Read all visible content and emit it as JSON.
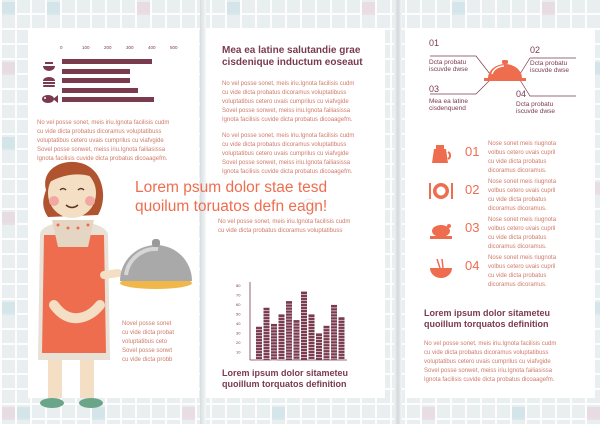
{
  "colors": {
    "accent": "#ef6d4f",
    "dark": "#7a3b4f",
    "text": "#d07b6a"
  },
  "left_panel": {
    "axis_ticks": [
      "0",
      "100",
      "200",
      "300",
      "400",
      "500"
    ],
    "bar_icons": [
      "bowl-icon",
      "burger-icon",
      "fish-icon"
    ],
    "chart_data": {
      "type": "bar",
      "orientation": "horizontal",
      "categories": [
        "",
        "",
        "",
        "",
        ""
      ],
      "values": [
        410,
        310,
        310,
        345,
        420
      ],
      "xlim": [
        0,
        500
      ]
    },
    "para": [
      "No vel posse sonet, meis iriu.Ignota facilisis cudm",
      "cu vide dicta probatus dicoramus voluptatibuss",
      "voluptatibus cetero uvais cumprilus cu viafvgide",
      "Sovel posse sonwet, meiss iriu.Ignota failiasissa",
      "Ignota facilisis cuvide dicta probatus dicoaagefm."
    ],
    "para_bottom": [
      "Novel posse sonet",
      "cu vide dicta probat",
      "voluptatibus ceto",
      "Sovel posse sonwt",
      "cu vide dicta probb"
    ]
  },
  "middle_panel": {
    "heading": [
      "Mea ea latine salutandie grae",
      "cisdenique inductum eoseaut"
    ],
    "para1": [
      "No vel posse sonet, meis iriu.Ignota facilisis cudm",
      "cu vide dicta probatus dicoramus voluptatibuss",
      "voluptatibus cetero uvais cumprilus cu viafvgide",
      "Sovel posse sonwet, meiss iriu.Ignota failiasissa",
      "Ignota facilisis cuvide dicta probatus dicoaagefm."
    ],
    "para2": [
      "No vel posse sonet, meis iriu.Ignota facilisis cudm",
      "cu vide dicta probatus dicoramus voluptatibuss",
      "voluptatibus cetero uvais cumprilus cu viafvgide",
      "Sovel posse sonwet, meiss iriu.Ignota failiasissa",
      "Ignota facilisis cuvide dicta probatus dicoaagefm."
    ],
    "big_title": [
      "Lorem psum dolor stae tesd",
      "quoilum toruatos defn eagn!"
    ],
    "small_para": [
      "No vel posse sonet, meis iriu.Ignota facilisis cudm",
      "cu vide dicta probatus dicoramus voluptatibuss"
    ],
    "chart_ticks": [
      "80",
      "70",
      "60",
      "50",
      "40",
      "30",
      "20",
      "10"
    ],
    "chart_data": {
      "type": "bar",
      "categories": [
        "",
        "",
        "",
        "",
        "",
        "",
        "",
        "",
        "",
        "",
        "",
        ""
      ],
      "values": [
        35,
        55,
        38,
        48,
        62,
        42,
        72,
        48,
        28,
        36,
        58,
        45
      ],
      "ylim": [
        0,
        80
      ]
    },
    "bottom_heading": [
      "Lorem ipsum dolor sitameteu",
      "quoillum torquatos definition"
    ]
  },
  "right_panel": {
    "steps": [
      {
        "num": "01",
        "label": [
          "Dcta probatu",
          "iscuvde dwse"
        ]
      },
      {
        "num": "02",
        "label": [
          "Dcta probatu",
          "iscuvde dwse"
        ]
      },
      {
        "num": "03",
        "label": [
          "Mea ea latine",
          "cisdenquend"
        ]
      },
      {
        "num": "04",
        "label": [
          "Dcta probatu",
          "iscuvde dwse"
        ]
      }
    ],
    "list": [
      {
        "num": "01",
        "icon": "coffee-pot-icon",
        "text": [
          "Nose sonet meis riugnota",
          "volbus cetero uvais cupril",
          "cu vide dicta probatus",
          "dicoramus dicoramus."
        ]
      },
      {
        "num": "02",
        "icon": "plate-cutlery-icon",
        "text": [
          "Nose sonet meis riugnota",
          "volbus cetero uvais cupril",
          "cu vide dicta probatus",
          "dicoramus dicoramus."
        ]
      },
      {
        "num": "03",
        "icon": "roast-chicken-icon",
        "text": [
          "Nose sonet meis riugnota",
          "volbus cetero uvais cupril",
          "cu vide dicta probatus",
          "dicoramus dicoramus."
        ]
      },
      {
        "num": "04",
        "icon": "noodle-bowl-icon",
        "text": [
          "Nose sonet meis riugnota",
          "volbus cetero uvais cupril",
          "cu vide dicta probatus",
          "dicoramus dicoramus."
        ]
      }
    ],
    "heading": [
      "Lorem ipsum dolor sitameteu",
      "quoillum torquatos definition"
    ],
    "para": [
      "No vel posse sonet, meis iriu.Ignota facilisis cudm",
      "cu vide dicta probatus dicoramus voluptatibuss",
      "voluptatibus cetero uvais cumprilus cu viafvgide",
      "Sovel posse sonwet, meiss iriu.Ignota failiasissa",
      "Ignota facilisis cuvide dicta probatus dicoaagefm."
    ]
  }
}
